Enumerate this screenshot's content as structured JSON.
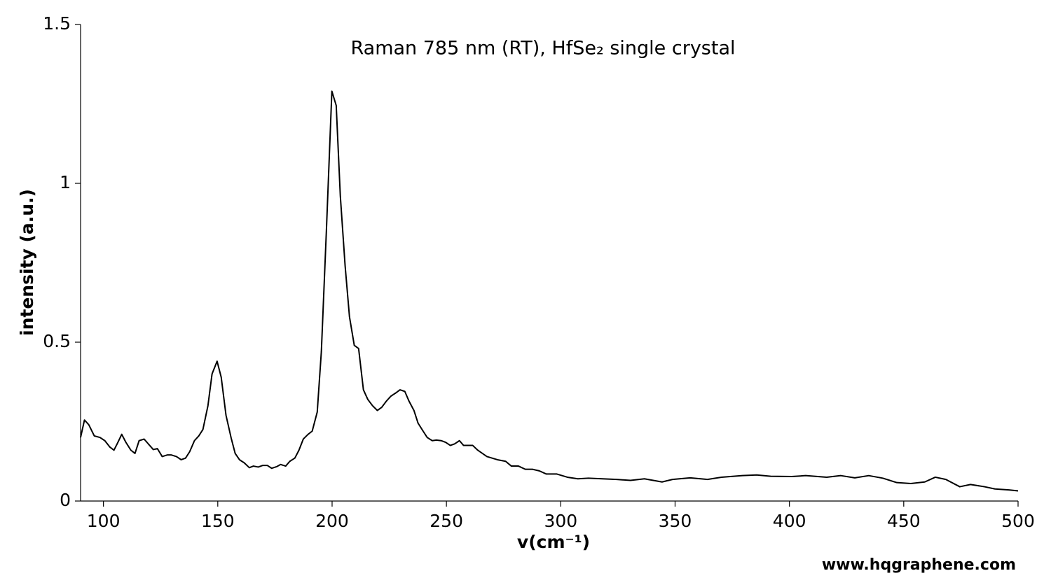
{
  "chart_data": {
    "type": "line",
    "title": "Raman 785 nm (RT), HfSe₂ single crystal",
    "x_label": "v(cm⁻¹)",
    "y_label": "intensity (a.u.)",
    "annotation": "www.hqgraphene.com",
    "xlim": [
      90,
      500
    ],
    "ylim": [
      0,
      1.5
    ],
    "xticks": [
      100,
      150,
      200,
      250,
      300,
      350,
      400,
      450,
      500
    ],
    "yticks": [
      0,
      0.5,
      1,
      1.5
    ],
    "x": [
      90,
      91.7,
      93.6,
      96,
      98.5,
      100.6,
      102.8,
      104.6,
      106,
      108,
      109.8,
      112,
      113.8,
      115.6,
      117.8,
      119.6,
      121.8,
      123.6,
      125.7,
      127.9,
      129.7,
      131.9,
      134,
      135.9,
      137.7,
      139.8,
      141.7,
      143.5,
      145.7,
      147.5,
      149.7,
      151.5,
      153.6,
      155.8,
      157.6,
      159.5,
      161.6,
      163.8,
      165.6,
      167.7,
      169.6,
      171.7,
      173.6,
      175.7,
      177.5,
      179.7,
      181.5,
      183.7,
      185.5,
      187.4,
      189.5,
      191.3,
      193.5,
      195.3,
      197.5,
      199.9,
      201.8,
      203.6,
      205.7,
      207.6,
      209.7,
      211.6,
      213.7,
      215.6,
      217.7,
      219.8,
      221.7,
      223.8,
      225.7,
      227.8,
      229.7,
      231.8,
      233.6,
      235.8,
      237.6,
      239.8,
      241.6,
      243.8,
      245.6,
      247.7,
      249.6,
      251.7,
      253.6,
      255.7,
      257.5,
      259.7,
      261.5,
      263.7,
      267.7,
      272.3,
      275.9,
      278.4,
      281.5,
      284.5,
      287.6,
      290.6,
      293.7,
      298.3,
      302.9,
      307.5,
      312.1,
      318.2,
      324.4,
      330.5,
      336.6,
      344.3,
      348.9,
      356.6,
      364.2,
      370.3,
      379.5,
      385.7,
      391.8,
      401,
      407.1,
      416.3,
      422.5,
      428.6,
      434.7,
      440.8,
      447,
      453.1,
      459.2,
      463.8,
      468.4,
      474.5,
      479.2,
      485.3,
      489.9,
      496,
      500
    ],
    "series": [
      {
        "name": "HfSe₂",
        "color": "#000000",
        "values": [
          0.2,
          0.255,
          0.24,
          0.205,
          0.2,
          0.19,
          0.17,
          0.16,
          0.18,
          0.21,
          0.185,
          0.16,
          0.15,
          0.19,
          0.195,
          0.18,
          0.162,
          0.165,
          0.14,
          0.145,
          0.145,
          0.14,
          0.13,
          0.135,
          0.155,
          0.19,
          0.205,
          0.225,
          0.3,
          0.4,
          0.44,
          0.39,
          0.27,
          0.2,
          0.15,
          0.13,
          0.12,
          0.105,
          0.11,
          0.107,
          0.112,
          0.112,
          0.103,
          0.108,
          0.115,
          0.11,
          0.125,
          0.135,
          0.16,
          0.195,
          0.21,
          0.22,
          0.28,
          0.47,
          0.85,
          1.29,
          1.245,
          0.96,
          0.74,
          0.58,
          0.49,
          0.48,
          0.35,
          0.32,
          0.3,
          0.285,
          0.295,
          0.315,
          0.33,
          0.34,
          0.35,
          0.345,
          0.315,
          0.285,
          0.245,
          0.22,
          0.2,
          0.19,
          0.192,
          0.19,
          0.185,
          0.175,
          0.18,
          0.19,
          0.175,
          0.175,
          0.175,
          0.16,
          0.14,
          0.13,
          0.125,
          0.11,
          0.11,
          0.1,
          0.1,
          0.095,
          0.085,
          0.085,
          0.075,
          0.07,
          0.072,
          0.07,
          0.068,
          0.065,
          0.07,
          0.06,
          0.068,
          0.073,
          0.068,
          0.075,
          0.08,
          0.082,
          0.078,
          0.077,
          0.08,
          0.075,
          0.08,
          0.073,
          0.08,
          0.072,
          0.058,
          0.055,
          0.06,
          0.075,
          0.068,
          0.045,
          0.052,
          0.045,
          0.038,
          0.035,
          0.032
        ]
      }
    ]
  }
}
